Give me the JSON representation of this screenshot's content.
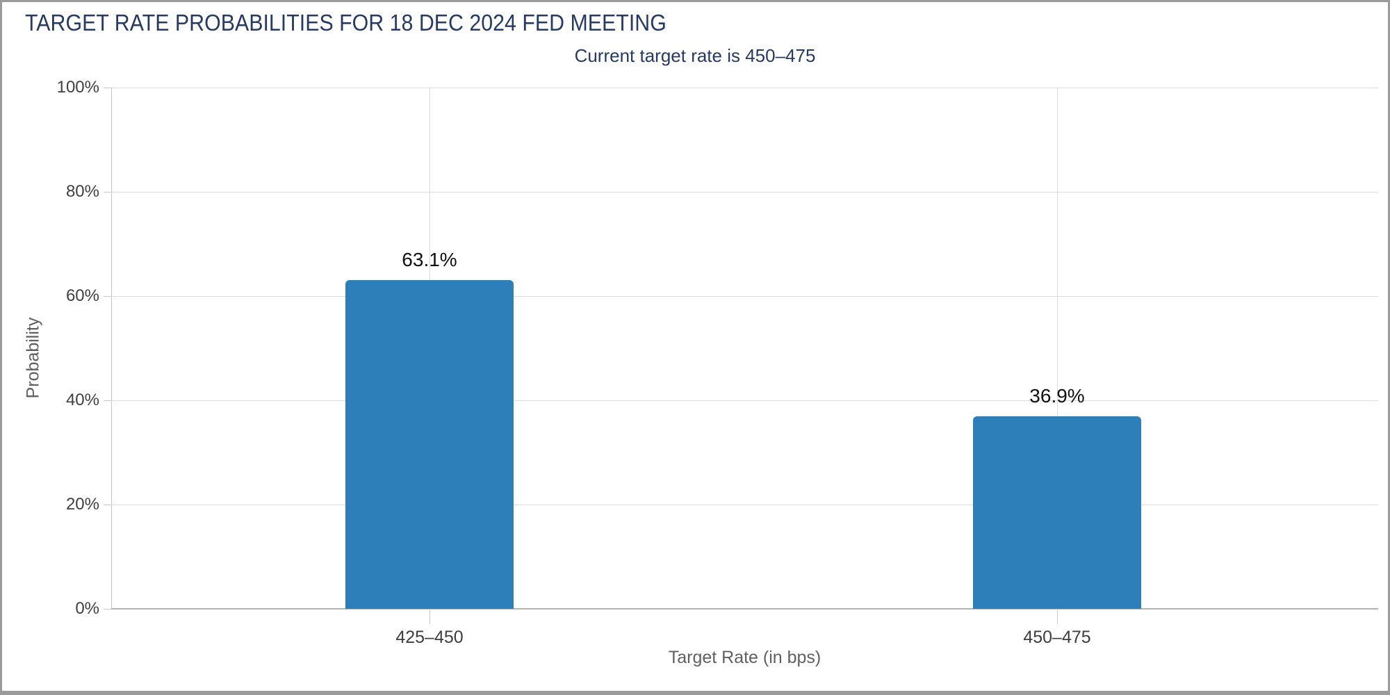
{
  "window": {
    "background": "#ffffff",
    "frame_border_color": "#9b9b9b"
  },
  "chart_data": {
    "type": "bar",
    "title": "TARGET RATE PROBABILITIES FOR 18 DEC 2024 FED MEETING",
    "subtitle": "Current target rate is 450–475",
    "categories": [
      "425–450",
      "450–475"
    ],
    "values": [
      63.1,
      36.9
    ],
    "value_labels": [
      "63.1%",
      "36.9%"
    ],
    "xlabel": "Target Rate (in bps)",
    "ylabel": "Probability",
    "ylim": [
      0,
      100
    ],
    "ytick_step": 20,
    "ytick_labels": [
      "0%",
      "20%",
      "40%",
      "60%",
      "80%",
      "100%"
    ],
    "grid": true,
    "legend": "none",
    "bar_color": "#2c7fb8",
    "title_color": "#263a64",
    "value_label_color": "#111111",
    "ytick_color": "#404040",
    "xtick_color": "#3d3d3d",
    "axis_title_color": "#606060",
    "gridline_color": "#dcdcdc"
  }
}
